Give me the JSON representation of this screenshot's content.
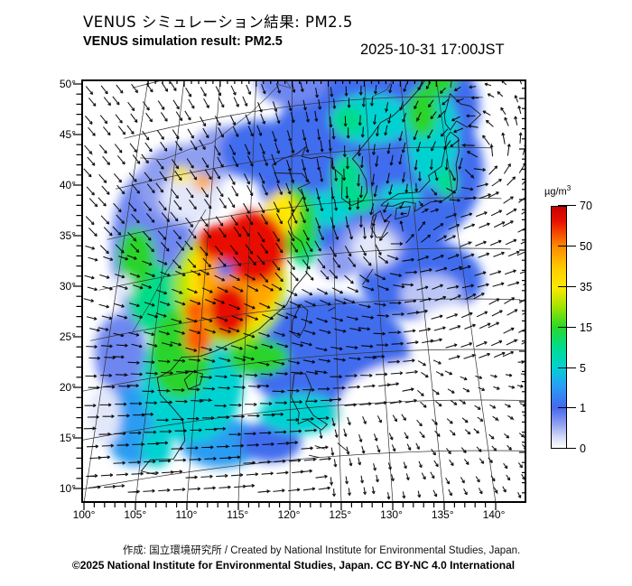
{
  "header": {
    "title_ja": "VENUS シミュレーション結果: PM2.5",
    "title_en": "VENUS simulation result: PM2.5",
    "datetime": "2025-10-31 17:00JST"
  },
  "axes": {
    "lat_labels": [
      "50°",
      "45°",
      "40°",
      "35°",
      "30°",
      "25°",
      "20°",
      "15°",
      "10°"
    ],
    "lon_labels": [
      "100°",
      "105°",
      "110°",
      "115°",
      "120°",
      "125°",
      "130°",
      "135°",
      "140°"
    ]
  },
  "colorbar": {
    "unit_base": "µg/m",
    "unit_exp": "3",
    "tick_labels": [
      "70",
      "50",
      "35",
      "15",
      "5",
      "1",
      "0"
    ],
    "gradient": [
      [
        "0%",
        "#c80000"
      ],
      [
        "6%",
        "#e81000"
      ],
      [
        "16.7%",
        "#ff8c00"
      ],
      [
        "25%",
        "#ffc800"
      ],
      [
        "33.3%",
        "#ffe800"
      ],
      [
        "41%",
        "#a8e400"
      ],
      [
        "50%",
        "#28d828"
      ],
      [
        "58%",
        "#00dc8c"
      ],
      [
        "66.7%",
        "#00d2d2"
      ],
      [
        "74%",
        "#28a0f5"
      ],
      [
        "83.3%",
        "#4668ee"
      ],
      [
        "90%",
        "#8e9ef0"
      ],
      [
        "96%",
        "#d8def8"
      ],
      [
        "100%",
        "#ffffff"
      ]
    ]
  },
  "footer": {
    "credit": "作成: 国立環境研究所 / Created by National Institute for Environmental Studies, Japan.",
    "license": "©2025 National Institute for Environmental Studies, Japan. CC BY-NC 4.0 International"
  },
  "chart_data": {
    "type": "heatmap",
    "title": "VENUS simulation result: PM2.5",
    "unit": "µg/m³",
    "scale_ticks": [
      0,
      1,
      5,
      15,
      35,
      50,
      70
    ],
    "lon_range": [
      100,
      140
    ],
    "lat_range": [
      10,
      50
    ],
    "overlay": "wind vector arrows",
    "legend_position": "right"
  },
  "map": {
    "palette": {
      "0": "#ffffff",
      "1": "#e2e7fa",
      "2": "#bcc6f6",
      "3": "#8e9ef0",
      "4": "#6e86f0",
      "5": "#3f6cee",
      "6": "#2b9cf2",
      "7": "#00d2d2",
      "8": "#00dc8c",
      "9": "#2ad42a",
      "a": "#a8e400",
      "b": "#ffe800",
      "c": "#ffa800",
      "d": "#ff5a00",
      "e": "#e81000"
    },
    "field_blobs": [
      [
        130,
        38,
        11,
        9,
        "5"
      ],
      [
        137,
        44,
        6,
        6,
        "5"
      ],
      [
        125,
        45,
        4.5,
        4,
        "5"
      ],
      [
        120,
        47.5,
        3.5,
        2.5,
        "4"
      ],
      [
        124,
        20,
        8,
        6,
        "5"
      ],
      [
        135,
        27,
        6,
        4,
        "5"
      ],
      [
        103.5,
        33,
        4,
        8,
        "4"
      ],
      [
        106,
        39,
        4,
        4,
        "3"
      ],
      [
        111.5,
        41.5,
        3.5,
        2.5,
        "3"
      ],
      [
        116,
        41,
        4,
        3,
        "5"
      ],
      [
        101.5,
        23,
        2.5,
        4,
        "4"
      ],
      [
        104,
        15.5,
        3,
        4,
        "6"
      ],
      [
        113,
        12.5,
        4,
        2.5,
        "6"
      ],
      [
        118,
        12,
        3,
        2,
        "5"
      ],
      [
        106.5,
        13,
        1.5,
        2,
        "7"
      ],
      [
        107.5,
        37.5,
        3,
        2.5,
        "1"
      ],
      [
        100.8,
        17,
        1.5,
        3,
        "1"
      ],
      [
        134,
        48.5,
        1.8,
        1.2,
        "1"
      ],
      [
        136,
        25.5,
        3,
        2,
        "2"
      ],
      [
        125.5,
        29,
        2,
        1.5,
        "3"
      ],
      [
        133.5,
        14,
        8,
        5,
        "0"
      ],
      [
        139,
        21.5,
        5,
        3,
        "0"
      ],
      [
        129.5,
        30.5,
        3.2,
        2.6,
        "3"
      ],
      [
        129.8,
        30.3,
        2.2,
        1.8,
        "1"
      ],
      [
        109.5,
        19,
        5,
        6,
        "7"
      ],
      [
        121,
        14.5,
        4,
        2,
        "7"
      ],
      [
        104.5,
        28,
        2.5,
        3.5,
        "8"
      ],
      [
        124.5,
        34.5,
        2.5,
        1.8,
        "7"
      ],
      [
        130.5,
        43,
        4,
        2.5,
        "7"
      ],
      [
        138.5,
        41,
        2.5,
        5,
        "7"
      ],
      [
        133.5,
        35.3,
        2,
        1.2,
        "7"
      ],
      [
        121.5,
        31.5,
        1.5,
        2.5,
        "8"
      ],
      [
        108,
        22,
        3,
        4.5,
        "9"
      ],
      [
        101.8,
        32.5,
        1.8,
        3,
        "9"
      ],
      [
        100.7,
        29.8,
        1,
        1.2,
        "1"
      ],
      [
        116.5,
        20.5,
        3,
        1.8,
        "9"
      ],
      [
        127,
        37.5,
        1.5,
        2.2,
        "8"
      ],
      [
        128.5,
        35,
        1.5,
        1.2,
        "8"
      ],
      [
        127.5,
        43,
        1.5,
        1.5,
        "8"
      ],
      [
        137.5,
        43.5,
        1.5,
        2.5,
        "9"
      ],
      [
        140.5,
        47.5,
        1.8,
        2.5,
        "9"
      ],
      [
        139.5,
        36.5,
        1,
        1.5,
        "8"
      ],
      [
        120.5,
        33.5,
        2,
        3.5,
        "9"
      ],
      [
        113,
        28,
        5.5,
        6,
        "a"
      ],
      [
        113.5,
        28.5,
        4.6,
        5.2,
        "b"
      ],
      [
        118.8,
        34.5,
        1.6,
        2.2,
        "b"
      ],
      [
        114,
        29,
        4,
        4.6,
        "c"
      ],
      [
        115.5,
        31.5,
        3.2,
        3.6,
        "e"
      ],
      [
        111.5,
        32.5,
        2.3,
        1.8,
        "e"
      ],
      [
        113,
        25.5,
        2,
        2.6,
        "e"
      ],
      [
        109.8,
        23.3,
        1.3,
        1.7,
        "d"
      ],
      [
        109.3,
        26,
        1.1,
        1.3,
        "d"
      ],
      [
        106,
        40,
        1,
        0.8,
        "b"
      ],
      [
        108.8,
        38.8,
        0.9,
        0.8,
        "c"
      ],
      [
        112.3,
        29.7,
        0.8,
        0.8,
        "5"
      ]
    ],
    "coastlines": [
      [
        [
          106.8,
          10.2
        ],
        [
          105.2,
          10.8
        ],
        [
          106,
          11.8
        ],
        [
          108.3,
          11.5
        ],
        [
          109.3,
          13.2
        ],
        [
          108.9,
          15.3
        ],
        [
          107.8,
          16.6
        ],
        [
          106.3,
          18.2
        ],
        [
          105.8,
          19.9
        ],
        [
          107.2,
          20.5
        ],
        [
          108.2,
          21.6
        ],
        [
          110.2,
          21.4
        ],
        [
          111.8,
          21.7
        ],
        [
          113.3,
          22.2
        ],
        [
          114.8,
          22.6
        ],
        [
          116.5,
          23.3
        ],
        [
          118,
          24.4
        ],
        [
          119.5,
          25.4
        ],
        [
          120.4,
          27
        ],
        [
          121.8,
          28.3
        ],
        [
          122,
          29.8
        ],
        [
          121.2,
          31.5
        ],
        [
          120.2,
          32.2
        ],
        [
          119.6,
          33.6
        ],
        [
          120.5,
          34.8
        ],
        [
          121.5,
          36
        ],
        [
          120.8,
          36.8
        ],
        [
          122.3,
          37.2
        ],
        [
          121.3,
          38.2
        ],
        [
          119.5,
          38.4
        ],
        [
          117.9,
          38.6
        ],
        [
          117.5,
          39.4
        ],
        [
          118.8,
          39.9
        ],
        [
          120.6,
          40.2
        ],
        [
          121.8,
          40.8
        ],
        [
          121.3,
          39.9
        ],
        [
          122.5,
          39.6
        ],
        [
          124,
          39.7
        ]
      ],
      [
        [
          124,
          39.7
        ],
        [
          125.2,
          39.4
        ],
        [
          125.1,
          38.6
        ],
        [
          126.4,
          37.6
        ],
        [
          126.3,
          36.5
        ],
        [
          126.2,
          35.4
        ],
        [
          127.4,
          34.6
        ],
        [
          128.8,
          35
        ],
        [
          129.4,
          35.8
        ],
        [
          129.4,
          37
        ],
        [
          128.6,
          38.4
        ],
        [
          127.8,
          39.2
        ],
        [
          128.8,
          40
        ],
        [
          130.5,
          41.4
        ],
        [
          131.8,
          42.6
        ],
        [
          133.5,
          43.2
        ],
        [
          135.5,
          44.4
        ],
        [
          137.5,
          45.8
        ],
        [
          139.2,
          47.5
        ],
        [
          140.2,
          48.8
        ],
        [
          140.6,
          50
        ]
      ],
      [
        [
          130.2,
          31.3
        ],
        [
          129.6,
          32.3
        ],
        [
          129.9,
          33.4
        ],
        [
          130.9,
          33.9
        ],
        [
          131.2,
          33
        ],
        [
          131.9,
          32.8
        ],
        [
          130.8,
          31.3
        ],
        [
          130.2,
          31.3
        ]
      ],
      [
        [
          132.6,
          33
        ],
        [
          134.2,
          33.3
        ],
        [
          134.6,
          34.2
        ],
        [
          132.9,
          34.1
        ],
        [
          132.6,
          33
        ]
      ],
      [
        [
          131,
          34.4
        ],
        [
          132.5,
          34.3
        ],
        [
          134,
          34.7
        ],
        [
          135.3,
          34.5
        ],
        [
          135.1,
          33.7
        ],
        [
          136.2,
          34.2
        ],
        [
          137.2,
          34.6
        ],
        [
          138.7,
          34.7
        ],
        [
          139.8,
          35.3
        ],
        [
          140.6,
          35.8
        ],
        [
          140.9,
          36.9
        ],
        [
          141,
          38.3
        ],
        [
          141.6,
          39.5
        ],
        [
          141.8,
          40.9
        ],
        [
          140.9,
          41.5
        ],
        [
          140.3,
          41
        ],
        [
          139.9,
          39.9
        ],
        [
          139.1,
          38.1
        ],
        [
          137.3,
          37.2
        ],
        [
          137.4,
          36.7
        ],
        [
          136.7,
          36.2
        ],
        [
          135.9,
          35.6
        ],
        [
          133.3,
          35.5
        ],
        [
          131.4,
          34.7
        ],
        [
          131,
          34.4
        ]
      ],
      [
        [
          140.4,
          42.3
        ],
        [
          140.9,
          41.7
        ],
        [
          141.9,
          42.6
        ],
        [
          143.2,
          42
        ],
        [
          145.3,
          43.3
        ],
        [
          144.1,
          44.1
        ],
        [
          142.8,
          44.3
        ],
        [
          141.6,
          45.3
        ],
        [
          140.9,
          44
        ],
        [
          140.4,
          43.2
        ],
        [
          140.4,
          42.3
        ]
      ],
      [
        [
          120.1,
          22.6
        ],
        [
          120.9,
          22
        ],
        [
          121.6,
          23.1
        ],
        [
          121.9,
          24.6
        ],
        [
          121.1,
          25.3
        ],
        [
          120.2,
          23.8
        ],
        [
          120.1,
          22.6
        ]
      ],
      [
        [
          109.2,
          18.3
        ],
        [
          108.7,
          19.3
        ],
        [
          109.6,
          20
        ],
        [
          110.6,
          19.6
        ],
        [
          110.4,
          18.6
        ],
        [
          109.2,
          18.3
        ]
      ],
      [
        [
          120.1,
          16.2
        ],
        [
          120.4,
          18.5
        ],
        [
          121.6,
          18.4
        ],
        [
          122.2,
          17
        ],
        [
          121.6,
          15.4
        ],
        [
          122.4,
          14.2
        ],
        [
          123.8,
          13.2
        ],
        [
          123.2,
          12.7
        ],
        [
          121.8,
          13.8
        ],
        [
          120.8,
          13.5
        ],
        [
          120.9,
          14.6
        ],
        [
          120.1,
          16.2
        ]
      ],
      [
        [
          122.5,
          11.2
        ],
        [
          123.5,
          10.8
        ]
      ],
      [
        [
          124.8,
          11.3
        ],
        [
          125.8,
          10.4
        ]
      ],
      [
        [
          121.9,
          10.3
        ],
        [
          122.9,
          10
        ]
      ],
      [
        [
          141.8,
          45.9
        ],
        [
          142.3,
          47.5
        ],
        [
          141.9,
          49
        ],
        [
          142.4,
          50
        ]
      ],
      [
        [
          128.2,
          26.7
        ],
        [
          129.5,
          28.2
        ]
      ],
      [
        [
          124.2,
          24.4
        ],
        [
          125,
          24.7
        ]
      ]
    ],
    "borders": [
      [
        [
          100.5,
          42.6
        ],
        [
          103.5,
          41.9
        ],
        [
          106.8,
          42.4
        ],
        [
          109.6,
          42.6
        ],
        [
          111.9,
          43.7
        ],
        [
          114.4,
          44.9
        ],
        [
          116.7,
          46.3
        ],
        [
          118.2,
          47.3
        ],
        [
          119.8,
          46.8
        ],
        [
          117.5,
          49.6
        ]
      ],
      [
        [
          131,
          45.2
        ],
        [
          133,
          45.8
        ],
        [
          134.8,
          47.8
        ],
        [
          134,
          48.4
        ],
        [
          131,
          47.7
        ],
        [
          127.8,
          49.6
        ],
        [
          125.5,
          49.4
        ],
        [
          121.5,
          50.5
        ]
      ],
      [
        [
          109.5,
          36
        ],
        [
          107.5,
          33
        ],
        [
          105.5,
          30.5
        ],
        [
          104,
          27.5
        ],
        [
          102.5,
          25
        ]
      ]
    ],
    "graticule": {
      "lats": [
        10,
        15,
        20,
        25,
        30,
        35,
        40,
        45,
        50
      ],
      "lons": [
        100,
        105,
        110,
        115,
        120,
        125,
        130,
        135,
        140
      ]
    }
  }
}
